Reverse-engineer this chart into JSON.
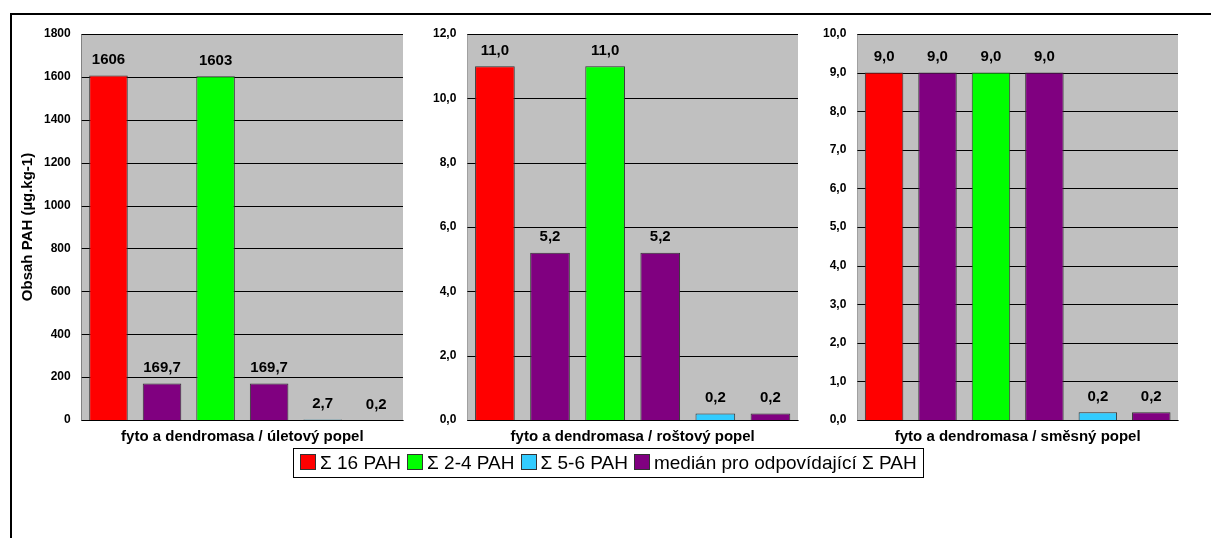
{
  "chart_data": [
    {
      "type": "bar",
      "xlabel": "fyto a dendromasa / úletový popel",
      "ylabel": "Obsah PAH (µg.kg-1)",
      "categories": [
        null,
        null,
        null,
        null,
        null,
        null
      ],
      "ylim": [
        0,
        1800
      ],
      "yticks": [
        0,
        200,
        400,
        600,
        800,
        1000,
        1200,
        1400,
        1600,
        1800
      ],
      "grid": "y",
      "legend": "bottom",
      "series": [
        {
          "name": "Σ 16 PAH",
          "color": "#ff0000",
          "values": [
            1606,
            null,
            null,
            null,
            null,
            null
          ],
          "value_labels": [
            "1606",
            null,
            null,
            null,
            null,
            null
          ]
        },
        {
          "name": "Σ  2-4 PAH",
          "color": "#00ff00",
          "values": [
            null,
            null,
            1603,
            null,
            null,
            null
          ],
          "value_labels": [
            null,
            null,
            "1603",
            null,
            null,
            null
          ]
        },
        {
          "name": "Σ  5-6 PAH",
          "color": "#33ccff",
          "values": [
            null,
            null,
            null,
            null,
            2.7,
            null
          ],
          "value_labels": [
            null,
            null,
            null,
            null,
            "2,7",
            null
          ]
        },
        {
          "name": "medián pro odpovídající Σ PAH",
          "color": "#800080",
          "values": [
            null,
            169.7,
            null,
            169.7,
            null,
            0.2
          ],
          "value_labels": [
            null,
            "169,7",
            null,
            "169,7",
            null,
            "0,2"
          ]
        }
      ]
    },
    {
      "type": "bar",
      "xlabel": "fyto a dendromasa / roštový popel",
      "categories": [
        null,
        null,
        null,
        null,
        null,
        null
      ],
      "ylim": [
        0,
        12
      ],
      "yticks": [
        {
          "value": 0,
          "label": "0,0"
        },
        {
          "value": 2,
          "label": "2,0"
        },
        {
          "value": 4,
          "label": "4,0"
        },
        {
          "value": 6,
          "label": "6,0"
        },
        {
          "value": 8,
          "label": "8,0"
        },
        {
          "value": 10,
          "label": "10,0"
        },
        {
          "value": 12,
          "label": "12,0"
        }
      ],
      "grid": "y",
      "series": [
        {
          "color": "#ff0000",
          "values": [
            11.0,
            null,
            null,
            null,
            null,
            null
          ],
          "value_labels": [
            "11,0",
            null,
            null,
            null,
            null,
            null
          ]
        },
        {
          "color": "#00ff00",
          "values": [
            null,
            null,
            11.0,
            null,
            null,
            null
          ],
          "value_labels": [
            null,
            null,
            "11,0",
            null,
            null,
            null
          ]
        },
        {
          "color": "#33ccff",
          "values": [
            null,
            null,
            null,
            null,
            0.2,
            null
          ],
          "value_labels": [
            null,
            null,
            null,
            null,
            "0,2",
            null
          ]
        },
        {
          "color": "#800080",
          "values": [
            null,
            5.2,
            null,
            5.2,
            null,
            0.2
          ],
          "value_labels": [
            null,
            "5,2",
            null,
            "5,2",
            null,
            "0,2"
          ]
        }
      ]
    },
    {
      "type": "bar",
      "xlabel": "fyto a dendromasa / směsný popel",
      "categories": [
        null,
        null,
        null,
        null,
        null,
        null
      ],
      "ylim": [
        0,
        10
      ],
      "yticks": [
        {
          "value": 0,
          "label": "0,0"
        },
        {
          "value": 1,
          "label": "1,0"
        },
        {
          "value": 2,
          "label": "2,0"
        },
        {
          "value": 3,
          "label": "3,0"
        },
        {
          "value": 4,
          "label": "4,0"
        },
        {
          "value": 5,
          "label": "5,0"
        },
        {
          "value": 6,
          "label": "6,0"
        },
        {
          "value": 7,
          "label": "7,0"
        },
        {
          "value": 8,
          "label": "8,0"
        },
        {
          "value": 9,
          "label": "9,0"
        },
        {
          "value": 10,
          "label": "10,0"
        }
      ],
      "grid": "y",
      "series": [
        {
          "color": "#ff0000",
          "values": [
            9.0,
            null,
            null,
            null,
            null,
            null
          ],
          "value_labels": [
            "9,0",
            null,
            null,
            null,
            null,
            null
          ]
        },
        {
          "color": "#00ff00",
          "values": [
            null,
            null,
            9.0,
            null,
            null,
            null
          ],
          "value_labels": [
            null,
            null,
            "9,0",
            null,
            null,
            null
          ]
        },
        {
          "color": "#33ccff",
          "values": [
            null,
            null,
            null,
            null,
            0.2,
            null
          ],
          "value_labels": [
            null,
            null,
            null,
            null,
            "0,2",
            null
          ]
        },
        {
          "color": "#800080",
          "values": [
            null,
            9.0,
            null,
            9.0,
            null,
            0.2
          ],
          "value_labels": [
            null,
            "9,0",
            null,
            "9,0",
            null,
            "0,2"
          ]
        }
      ]
    }
  ]
}
